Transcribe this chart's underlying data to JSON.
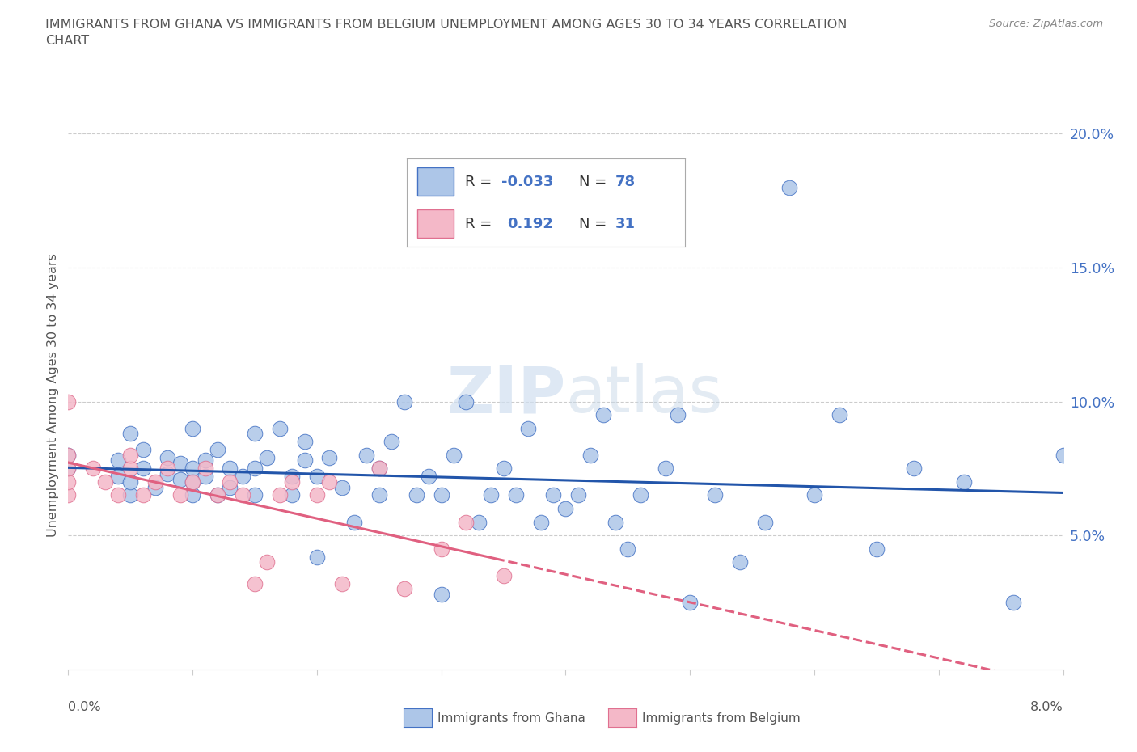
{
  "title": "IMMIGRANTS FROM GHANA VS IMMIGRANTS FROM BELGIUM UNEMPLOYMENT AMONG AGES 30 TO 34 YEARS CORRELATION\nCHART",
  "source": "Source: ZipAtlas.com",
  "ylabel": "Unemployment Among Ages 30 to 34 years",
  "xlim": [
    0.0,
    0.08
  ],
  "ylim": [
    0.0,
    0.205
  ],
  "ghana_color": "#adc6e8",
  "ghana_edge_color": "#4472c4",
  "belgium_color": "#f4b8c8",
  "belgium_edge_color": "#e07090",
  "ghana_line_color": "#2255aa",
  "belgium_line_color": "#e06080",
  "legend_text_color": "#4472c4",
  "ytick_color": "#4472c4",
  "background_color": "#ffffff",
  "ghana_x": [
    0.0,
    0.0,
    0.004,
    0.004,
    0.005,
    0.005,
    0.005,
    0.006,
    0.006,
    0.007,
    0.008,
    0.008,
    0.009,
    0.009,
    0.01,
    0.01,
    0.01,
    0.01,
    0.011,
    0.011,
    0.012,
    0.012,
    0.013,
    0.013,
    0.014,
    0.015,
    0.015,
    0.015,
    0.016,
    0.017,
    0.018,
    0.018,
    0.019,
    0.019,
    0.02,
    0.02,
    0.021,
    0.022,
    0.023,
    0.024,
    0.025,
    0.025,
    0.026,
    0.027,
    0.028,
    0.029,
    0.03,
    0.03,
    0.031,
    0.032,
    0.033,
    0.034,
    0.035,
    0.036,
    0.037,
    0.038,
    0.039,
    0.04,
    0.041,
    0.042,
    0.043,
    0.044,
    0.045,
    0.046,
    0.048,
    0.049,
    0.05,
    0.052,
    0.054,
    0.056,
    0.058,
    0.06,
    0.062,
    0.065,
    0.068,
    0.072,
    0.076,
    0.08
  ],
  "ghana_y": [
    0.075,
    0.08,
    0.072,
    0.078,
    0.065,
    0.07,
    0.088,
    0.075,
    0.082,
    0.068,
    0.073,
    0.079,
    0.071,
    0.077,
    0.065,
    0.07,
    0.075,
    0.09,
    0.072,
    0.078,
    0.065,
    0.082,
    0.068,
    0.075,
    0.072,
    0.065,
    0.075,
    0.088,
    0.079,
    0.09,
    0.065,
    0.072,
    0.078,
    0.085,
    0.042,
    0.072,
    0.079,
    0.068,
    0.055,
    0.08,
    0.065,
    0.075,
    0.085,
    0.1,
    0.065,
    0.072,
    0.028,
    0.065,
    0.08,
    0.1,
    0.055,
    0.065,
    0.075,
    0.065,
    0.09,
    0.055,
    0.065,
    0.06,
    0.065,
    0.08,
    0.095,
    0.055,
    0.045,
    0.065,
    0.075,
    0.095,
    0.025,
    0.065,
    0.04,
    0.055,
    0.18,
    0.065,
    0.095,
    0.045,
    0.075,
    0.07,
    0.025,
    0.08
  ],
  "belgium_x": [
    0.0,
    0.0,
    0.0,
    0.0,
    0.0,
    0.002,
    0.003,
    0.004,
    0.005,
    0.005,
    0.006,
    0.007,
    0.008,
    0.009,
    0.01,
    0.011,
    0.012,
    0.013,
    0.014,
    0.015,
    0.016,
    0.017,
    0.018,
    0.02,
    0.021,
    0.022,
    0.025,
    0.027,
    0.03,
    0.032,
    0.035
  ],
  "belgium_y": [
    0.065,
    0.07,
    0.075,
    0.08,
    0.1,
    0.075,
    0.07,
    0.065,
    0.075,
    0.08,
    0.065,
    0.07,
    0.075,
    0.065,
    0.07,
    0.075,
    0.065,
    0.07,
    0.065,
    0.032,
    0.04,
    0.065,
    0.07,
    0.065,
    0.07,
    0.032,
    0.075,
    0.03,
    0.045,
    0.055,
    0.035
  ]
}
